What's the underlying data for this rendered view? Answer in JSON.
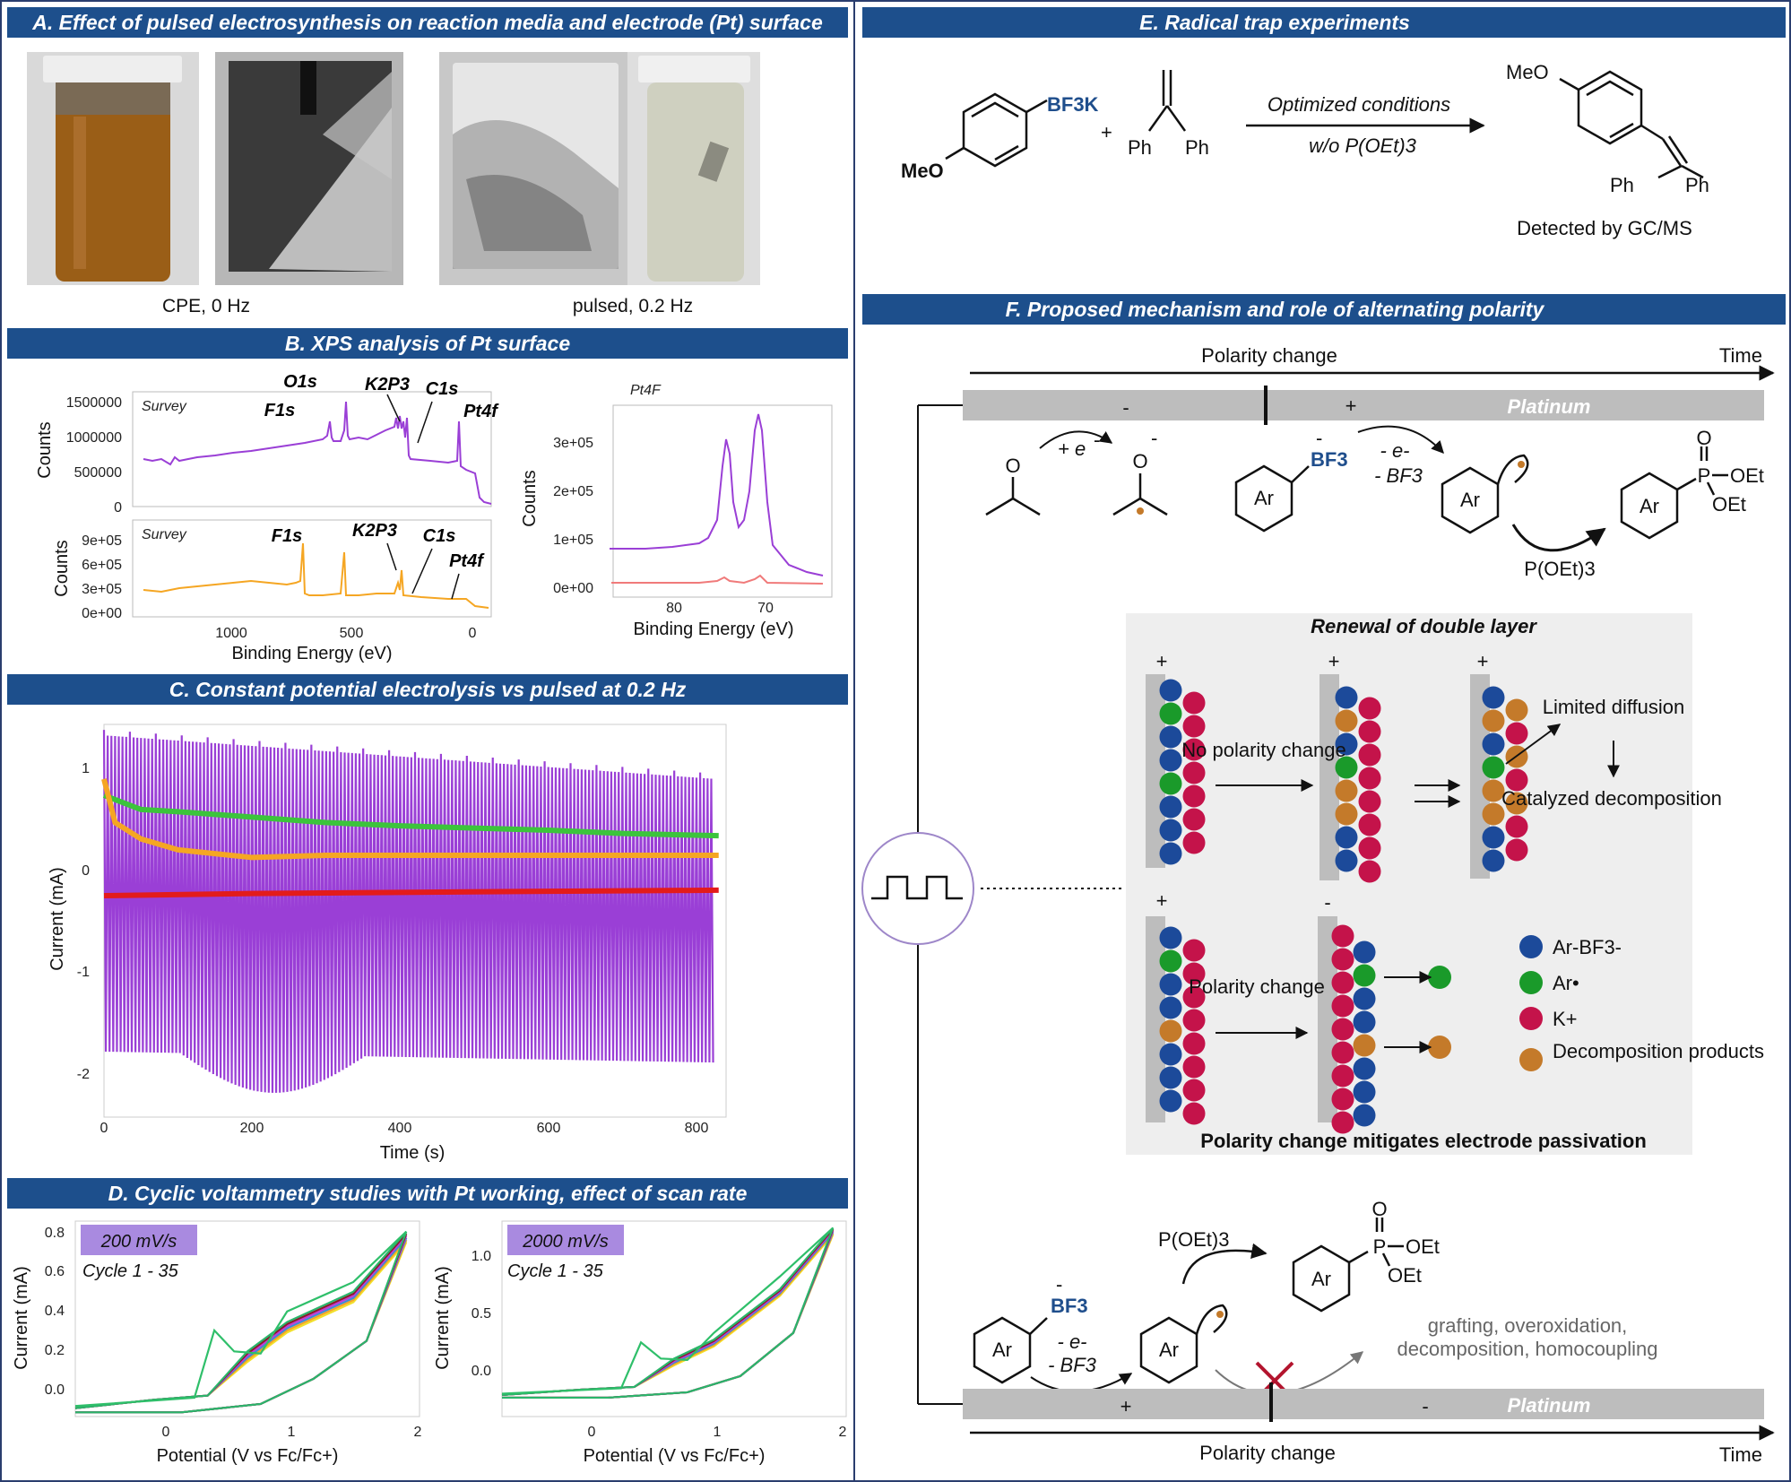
{
  "panels": {
    "A": {
      "header": "A. Effect of pulsed electrosynthesis on reaction media and electrode (Pt) surface",
      "caption_left": "CPE, 0 Hz",
      "caption_right": "pulsed, 0.2 Hz"
    },
    "B": {
      "header": "B. XPS analysis of Pt surface",
      "survey1": {
        "label": "Survey",
        "ylabel": "Counts",
        "yticks": [
          "1500000",
          "1000000",
          "500000",
          "0"
        ],
        "peaks": [
          "O1s",
          "F1s",
          "K2P3",
          "C1s",
          "Pt4f"
        ]
      },
      "survey2": {
        "label": "Survey",
        "ylabel": "Counts",
        "yticks": [
          "9e+05",
          "6e+05",
          "3e+05",
          "0e+00"
        ],
        "xticks": [
          "1000",
          "500",
          "0"
        ],
        "xlabel": "Binding Energy (eV)",
        "peaks": [
          "F1s",
          "K2P3",
          "C1s",
          "Pt4f"
        ]
      },
      "pt4f": {
        "label": "Pt4F",
        "ylabel": "Counts",
        "yticks": [
          "3e+05",
          "2e+05",
          "1e+05",
          "0e+00"
        ],
        "xticks": [
          "80",
          "70"
        ],
        "xlabel": "Binding Energy (eV)"
      }
    },
    "C": {
      "header": "C. Constant potential electrolysis vs pulsed at 0.2 Hz",
      "ylabel": "Current (mA)",
      "xlabel": "Time (s)",
      "yticks": [
        "1",
        "0",
        "-1",
        "-2"
      ],
      "xticks": [
        "0",
        "200",
        "400",
        "600",
        "800"
      ]
    },
    "D": {
      "header": "D. Cyclic voltammetry studies with Pt working, effect of scan rate",
      "left": {
        "rate": "200 mV/s",
        "cycle": "Cycle 1 - 35",
        "ylabel": "Current (mA)",
        "xlabel": "Potential (V vs Fc/Fc+)",
        "yticks": [
          "0.8",
          "0.6",
          "0.4",
          "0.2",
          "0.0"
        ],
        "xticks": [
          "0",
          "1",
          "2"
        ]
      },
      "right": {
        "rate": "2000 mV/s",
        "cycle": "Cycle 1 - 35",
        "ylabel": "Current (mA)",
        "xlabel": "Potential (V vs Fc/Fc+)",
        "yticks": [
          "1.0",
          "0.5",
          "0.0"
        ],
        "xticks": [
          "0",
          "1",
          "2"
        ]
      }
    },
    "E": {
      "header": "E. Radical trap experiments",
      "reagent_bf3k": "BF3K",
      "meo": "MeO",
      "plus": "+",
      "ph": "Ph",
      "conditions": "Optimized conditions",
      "conditions2": "w/o P(OEt)3",
      "product_meo": "MeO",
      "detected": "Detected by GC/MS"
    },
    "F": {
      "header": "F. Proposed mechanism and role of alternating polarity",
      "polarity_change": "Polarity change",
      "time": "Time",
      "platinum": "Platinum",
      "minus": "-",
      "plus": "+",
      "plus_e": "+ e",
      "bf3": "BF3",
      "minus_e": "- e-",
      "minus_bf3": "- BF3",
      "ar": "Ar",
      "poet3": "P(OEt)3",
      "oet": "OEt",
      "p": "P",
      "o": "O",
      "renewal_title": "Renewal of double layer",
      "no_polarity_change": "No polarity change",
      "limited_diffusion": "Limited diffusion",
      "catalyzed_decomposition": "Catalyzed decomposition",
      "polarity_change_box": "Polarity change",
      "legend": [
        "Ar-BF3-",
        "Ar•",
        "K+",
        "Decomposition products"
      ],
      "mitigates": "Polarity change mitigates electrode passivation",
      "side_reactions": [
        "grafting, overoxidation,",
        "decomposition, homocoupling"
      ]
    }
  },
  "colors": {
    "header_blue": "#1d4f8c",
    "purple": "#9a3fd6",
    "orange": "#f5a623",
    "green": "#3cc43c",
    "red": "#e31b1b",
    "ar_bf3": "#1c4a9a",
    "ar_rad": "#1a9a2a",
    "k_plus": "#c4134a",
    "decomp": "#c47a2a"
  },
  "chart_data": [
    {
      "type": "line",
      "title": "Constant potential electrolysis vs pulsed at 0.2 Hz",
      "xlabel": "Time (s)",
      "ylabel": "Current (mA)",
      "xlim": [
        0,
        840
      ],
      "ylim": [
        -2.3,
        1.3
      ],
      "series": [
        {
          "color": "#9a3fd6",
          "kind": "pulsed",
          "upper_start": 1.2,
          "upper_end": 0.8,
          "lower_start": -1.7,
          "lower_end": -1.8
        },
        {
          "color": "#3cc43c",
          "x": [
            0,
            50,
            100,
            200,
            300,
            400,
            500,
            600,
            700,
            830
          ],
          "y": [
            0.65,
            0.52,
            0.5,
            0.45,
            0.4,
            0.37,
            0.35,
            0.33,
            0.3,
            0.28
          ]
        },
        {
          "color": "#f5a623",
          "x": [
            0,
            15,
            50,
            100,
            200,
            300,
            500,
            830
          ],
          "y": [
            0.8,
            0.4,
            0.25,
            0.15,
            0.08,
            0.1,
            0.1,
            0.1
          ]
        },
        {
          "color": "#e31b1b",
          "x": [
            0,
            200,
            400,
            600,
            830
          ],
          "y": [
            -0.27,
            -0.25,
            -0.24,
            -0.23,
            -0.22
          ]
        }
      ]
    },
    {
      "type": "line",
      "title": "200 mV/s",
      "xlabel": "Potential (V vs Fc/Fc+)",
      "ylabel": "Current (mA)",
      "xlim": [
        -0.6,
        2
      ],
      "ylim": [
        -0.08,
        0.85
      ]
    },
    {
      "type": "line",
      "title": "2000 mV/s",
      "xlabel": "Potential (V vs Fc/Fc+)",
      "ylabel": "Current (mA)",
      "xlim": [
        -0.6,
        2
      ],
      "ylim": [
        -0.2,
        1.25
      ]
    }
  ]
}
